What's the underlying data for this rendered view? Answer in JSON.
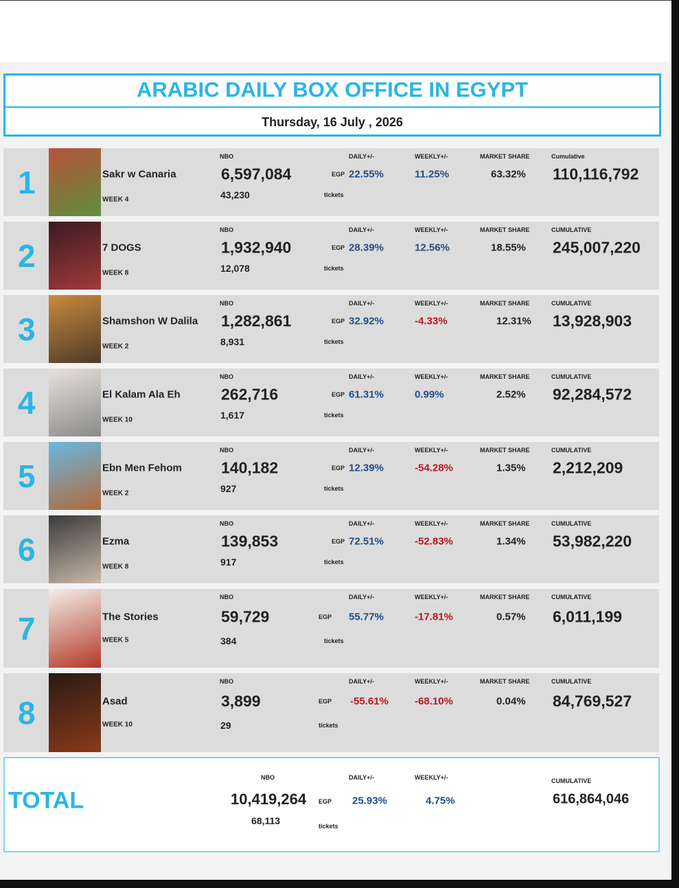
{
  "header": {
    "title": "ARABIC DAILY BOX OFFICE IN EGYPT",
    "date": "Thursday, 16  July , 2026"
  },
  "rows": [
    {
      "rank": "1",
      "title": "Sakr w Canaria",
      "week": "WEEK 4",
      "nbo_label": "NBO",
      "nbo": "6,597,084",
      "tickets": "43,230",
      "egp_label": "EGP",
      "tickets_label": "tickets",
      "daily_label": "DAILY+/-",
      "daily": "22.55%",
      "daily_color": "#1f4e8c",
      "weekly_label": "WEEKLY+/-",
      "weekly": "11.25%",
      "weekly_color": "#1f4e8c",
      "share_label": "MARKET SHARE",
      "share": "63.32%",
      "cumulative_label": "Cumulative",
      "cumulative": "110,116,792"
    },
    {
      "rank": "2",
      "title": "7 DOGS",
      "week": "WEEK 8",
      "nbo_label": "NBO",
      "nbo": "1,932,940",
      "tickets": "12,078",
      "egp_label": "EGP",
      "tickets_label": "tickets",
      "daily_label": "DAILY+/-",
      "daily": "28.39%",
      "daily_color": "#1f4e8c",
      "weekly_label": "WEEKLY+/-",
      "weekly": "12.56%",
      "weekly_color": "#1f4e8c",
      "share_label": "MARKET SHARE",
      "share": "18.55%",
      "cumulative_label": "CUMULATIVE",
      "cumulative": "245,007,220"
    },
    {
      "rank": "3",
      "title": "Shamshon W Dalila",
      "week": "WEEK 2",
      "nbo_label": "NBO",
      "nbo": "1,282,861",
      "tickets": "8,931",
      "egp_label": "EGP",
      "tickets_label": "tickets",
      "daily_label": "DAILY+/-",
      "daily": "32.92%",
      "daily_color": "#1f4e8c",
      "weekly_label": "WEEKLY+/-",
      "weekly": "-4.33%",
      "weekly_color": "#c0141c",
      "share_label": "MARKET SHARE",
      "share": "12.31%",
      "cumulative_label": "CUMULATIVE",
      "cumulative": "13,928,903"
    },
    {
      "rank": "4",
      "title": "El Kalam Ala Eh",
      "week": "WEEK 10",
      "nbo_label": "NBO",
      "nbo": "262,716",
      "tickets": "1,617",
      "egp_label": "EGP",
      "tickets_label": "tickets",
      "daily_label": "DAILY+/-",
      "daily": "61.31%",
      "daily_color": "#1f4e8c",
      "weekly_label": "WEEKLY+/-",
      "weekly": "0.99%",
      "weekly_color": "#1f4e8c",
      "share_label": "MARKET SHARE",
      "share": "2.52%",
      "cumulative_label": "CUMULATIVE",
      "cumulative": "92,284,572"
    },
    {
      "rank": "5",
      "title": "Ebn Men Fehom",
      "week": "WEEK 2",
      "nbo_label": "NBO",
      "nbo": "140,182",
      "tickets": "927",
      "egp_label": "EGP",
      "tickets_label": "tickets",
      "daily_label": "DAILY+/-",
      "daily": "12.39%",
      "daily_color": "#1f4e8c",
      "weekly_label": "WEEKLY+/-",
      "weekly": "-54.28%",
      "weekly_color": "#c0141c",
      "share_label": "MARKET SHARE",
      "share": "1.35%",
      "cumulative_label": "CUMULATIVE",
      "cumulative": "2,212,209"
    },
    {
      "rank": "6",
      "title": "Ezma",
      "week": "WEEK 8",
      "nbo_label": "NBO",
      "nbo": "139,853",
      "tickets": "917",
      "egp_label": "EGP",
      "tickets_label": "tickets",
      "daily_label": "DAILY+/-",
      "daily": "72.51%",
      "daily_color": "#1f4e8c",
      "weekly_label": "WEEKLY+/-",
      "weekly": "-52.83%",
      "weekly_color": "#c0141c",
      "share_label": "MARKET SHARE",
      "share": "1.34%",
      "cumulative_label": "CUMULATIVE",
      "cumulative": "53,982,220"
    },
    {
      "rank": "7",
      "title": "The Stories",
      "week": "WEEK 5",
      "nbo_label": "NBO",
      "nbo": "59,729",
      "tickets": "384",
      "egp_label": "EGP",
      "tickets_label": "tickets",
      "daily_label": "DAILY+/-",
      "daily": "55.77%",
      "daily_color": "#1f4e8c",
      "weekly_label": "WEEKLY+/-",
      "weekly": "-17.81%",
      "weekly_color": "#c0141c",
      "share_label": "MARKET SHARE",
      "share": "0.57%",
      "cumulative_label": "CUMULATIVE",
      "cumulative": "6,011,199"
    },
    {
      "rank": "8",
      "title": "Asad",
      "week": "WEEK 10",
      "nbo_label": "NBO",
      "nbo": "3,899",
      "tickets": "29",
      "egp_label": "EGP",
      "tickets_label": "tickets",
      "daily_label": "DAILY+/-",
      "daily": "-55.61%",
      "daily_color": "#c0141c",
      "weekly_label": "WEEKLY+/-",
      "weekly": "-68.10%",
      "weekly_color": "#c0141c",
      "share_label": "MARKET SHARE",
      "share": "0.04%",
      "cumulative_label": "CUMULATIVE",
      "cumulative": "84,769,527"
    }
  ],
  "total": {
    "label": "TOTAL",
    "nbo_label": "NBO",
    "nbo": "10,419,264",
    "tickets": "68,113",
    "egp_label": "EGP",
    "tickets_label": "tickets",
    "daily_label": "DAILY+/-",
    "daily": "25.93%",
    "weekly_label": "WEEKLY+/-",
    "weekly": "4.75%",
    "cumulative_label": "CUMULATIVE",
    "cumulative": "616,864,046"
  }
}
